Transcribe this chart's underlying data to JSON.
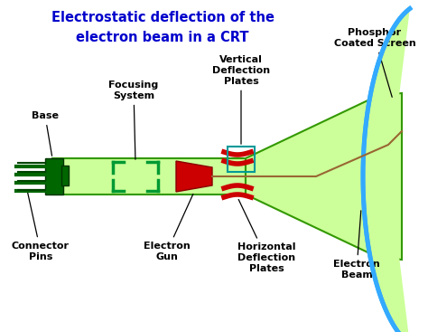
{
  "title_line1": "Electrostatic deflection of the",
  "title_line2": "electron beam in a CRT",
  "title_color": "#0000CC",
  "bg_color": "#ffffff",
  "labels": {
    "base": "Base",
    "focusing_system": "Focusing\nSystem",
    "vertical_deflection": "Vertical\nDeflection\nPlates",
    "phosphor": "Phosphor\nCoated Screen",
    "connector_pins": "Connector\nPins",
    "electron_gun": "Electron\nGun",
    "horizontal_deflection": "Horizontal\nDeflection\nPlates",
    "electron_beam": "Electron\nBeam"
  },
  "tube_fill": "#ccff99",
  "tube_edge": "#339900",
  "gun_color": "#cc0000",
  "base_color": "#006600",
  "screen_color": "#33aaff",
  "beam_color": "#996633",
  "plate_color": "#cc0000",
  "bracket_color": "#009933"
}
